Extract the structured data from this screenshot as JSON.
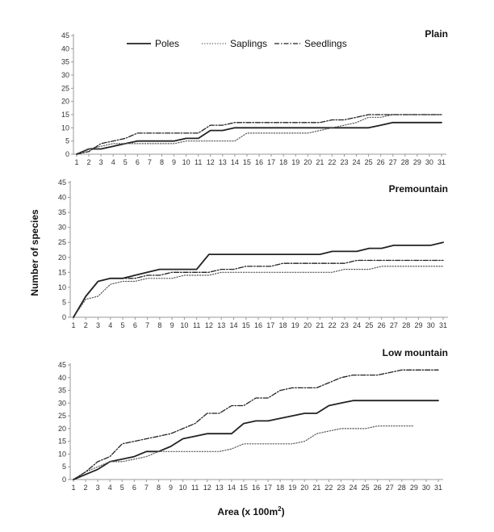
{
  "chart_data": [
    {
      "type": "line",
      "title": "Plain",
      "ylim": [
        0,
        45
      ],
      "yticks": [
        0,
        5,
        10,
        15,
        20,
        25,
        30,
        35,
        40,
        45
      ],
      "x": [
        1,
        2,
        3,
        4,
        5,
        6,
        7,
        8,
        9,
        10,
        11,
        12,
        13,
        14,
        15,
        16,
        17,
        18,
        19,
        20,
        21,
        22,
        23,
        24,
        25,
        26,
        27,
        28,
        29,
        30,
        31
      ],
      "series": [
        {
          "name": "Poles",
          "style": "solid",
          "values": [
            0,
            2,
            2,
            3,
            4,
            5,
            5,
            5,
            5,
            6,
            6,
            9,
            9,
            10,
            10,
            10,
            10,
            10,
            10,
            10,
            10,
            10,
            10,
            10,
            10,
            11,
            12,
            12,
            12,
            12,
            12
          ]
        },
        {
          "name": "Saplings",
          "style": "dotted",
          "values": [
            0,
            2,
            3,
            4,
            4,
            4,
            4,
            4,
            4,
            5,
            5,
            5,
            5,
            5,
            8,
            8,
            8,
            8,
            8,
            8,
            9,
            10,
            11,
            12,
            14,
            14,
            15,
            15,
            15,
            15,
            15
          ]
        },
        {
          "name": "Seedlings",
          "style": "dashdot",
          "values": [
            0,
            1,
            4,
            5,
            6,
            8,
            8,
            8,
            8,
            8,
            8,
            11,
            11,
            12,
            12,
            12,
            12,
            12,
            12,
            12,
            12,
            13,
            13,
            14,
            15,
            15,
            15,
            15,
            15,
            15,
            15
          ]
        }
      ]
    },
    {
      "type": "line",
      "title": "Premountain",
      "ylim": [
        0,
        45
      ],
      "yticks": [
        0,
        5,
        10,
        15,
        20,
        25,
        30,
        35,
        40,
        45
      ],
      "x": [
        1,
        2,
        3,
        4,
        5,
        6,
        7,
        8,
        9,
        10,
        11,
        12,
        13,
        14,
        15,
        16,
        17,
        18,
        19,
        20,
        21,
        22,
        23,
        24,
        25,
        26,
        27,
        28,
        29,
        30,
        31
      ],
      "series": [
        {
          "name": "Poles",
          "style": "solid",
          "values": [
            0,
            7,
            12,
            13,
            13,
            14,
            15,
            16,
            16,
            16,
            16,
            21,
            21,
            21,
            21,
            21,
            21,
            21,
            21,
            21,
            21,
            22,
            22,
            22,
            23,
            23,
            24,
            24,
            24,
            24,
            25
          ]
        },
        {
          "name": "Saplings",
          "style": "dotted",
          "values": [
            0,
            6,
            7,
            11,
            12,
            12,
            13,
            13,
            13,
            14,
            14,
            14,
            15,
            15,
            15,
            15,
            15,
            15,
            15,
            15,
            15,
            15,
            16,
            16,
            16,
            17,
            17,
            17,
            17,
            17,
            17
          ]
        },
        {
          "name": "Seedlings",
          "style": "dashdot",
          "values": [
            0,
            7,
            12,
            13,
            13,
            13,
            14,
            14,
            15,
            15,
            15,
            15,
            16,
            16,
            17,
            17,
            17,
            18,
            18,
            18,
            18,
            18,
            18,
            19,
            19,
            19,
            19,
            19,
            19,
            19,
            19
          ]
        }
      ]
    },
    {
      "type": "line",
      "title": "Low mountain",
      "ylim": [
        0,
        45
      ],
      "yticks": [
        0,
        5,
        10,
        15,
        20,
        25,
        30,
        35,
        40,
        45
      ],
      "x": [
        1,
        2,
        3,
        4,
        5,
        6,
        7,
        8,
        9,
        10,
        11,
        12,
        13,
        14,
        15,
        16,
        17,
        18,
        19,
        20,
        21,
        22,
        23,
        24,
        25,
        26,
        27,
        28,
        29,
        30,
        31
      ],
      "series": [
        {
          "name": "Poles",
          "style": "solid",
          "values": [
            0,
            2,
            4,
            7,
            8,
            9,
            11,
            11,
            13,
            16,
            17,
            18,
            18,
            18,
            22,
            23,
            23,
            24,
            25,
            26,
            26,
            29,
            30,
            31,
            31,
            31,
            31,
            31,
            31,
            31,
            31
          ]
        },
        {
          "name": "Saplings",
          "style": "dotted",
          "values": [
            0,
            3,
            5,
            7,
            7,
            8,
            9,
            11,
            11,
            11,
            11,
            11,
            11,
            12,
            14,
            14,
            14,
            14,
            14,
            15,
            18,
            19,
            20,
            20,
            20,
            21,
            21,
            21,
            21,
            null,
            null
          ]
        },
        {
          "name": "Seedlings",
          "style": "dashdot",
          "values": [
            0,
            3,
            7,
            9,
            14,
            15,
            16,
            17,
            18,
            20,
            22,
            26,
            26,
            29,
            29,
            32,
            32,
            35,
            36,
            36,
            36,
            38,
            40,
            41,
            41,
            41,
            42,
            43,
            43,
            43,
            43
          ]
        }
      ]
    }
  ],
  "ylabel": "Number of species",
  "xlabel_prefix": "Area (x 100m",
  "xlabel_sup": "2",
  "xlabel_suffix": ")",
  "legend": {
    "entries": [
      "Poles",
      "Saplings",
      "Seedlings"
    ],
    "placement": "top-center"
  },
  "colors": {
    "line": "#222222",
    "dotted": "#555555",
    "axis": "#999999",
    "text": "#333333"
  }
}
